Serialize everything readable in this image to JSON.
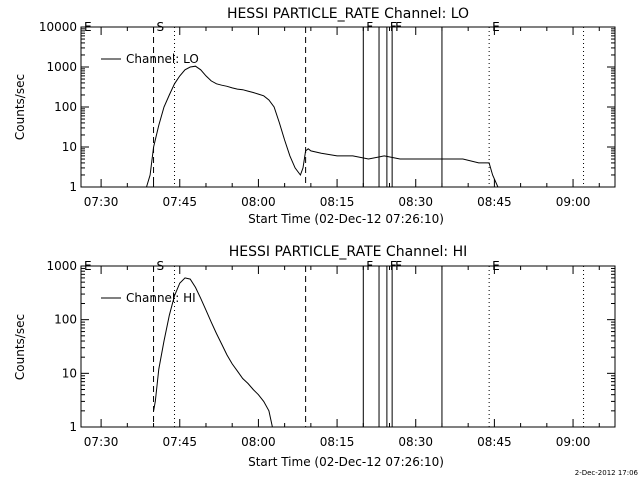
{
  "footer": {
    "timestamp": "2-Dec-2012 17:06"
  },
  "chart_data": [
    {
      "type": "line",
      "title": "HESSI PARTICLE_RATE Channel: LO",
      "xlabel": "Start Time (02-Dec-12 07:26:10)",
      "ylabel": "Counts/sec",
      "y_scale": "log",
      "ylim": [
        1,
        10000
      ],
      "xlim": [
        "07:26:10",
        "09:08"
      ],
      "x_ticks": [
        "07:30",
        "07:45",
        "08:00",
        "08:15",
        "08:30",
        "08:45",
        "09:00"
      ],
      "y_ticks": [
        "1",
        "10",
        "100",
        "1000",
        "10000"
      ],
      "legend": {
        "position": "top-left",
        "entries": [
          "Channel: LO"
        ]
      },
      "event_markers": [
        {
          "label": "E",
          "time": "07:26:10",
          "style": "none"
        },
        {
          "label": "S",
          "time": "07:40",
          "style": "dashed"
        },
        {
          "label": "",
          "time": "07:44",
          "style": "dotted"
        },
        {
          "label": "",
          "time": "08:09",
          "style": "dashed"
        },
        {
          "label": "F",
          "time": "08:20",
          "style": "solid"
        },
        {
          "label": "",
          "time": "08:23",
          "style": "solid"
        },
        {
          "label": "F",
          "time": "08:24.5",
          "style": "solid"
        },
        {
          "label": "F",
          "time": "08:25.5",
          "style": "solid"
        },
        {
          "label": "",
          "time": "08:35",
          "style": "solid"
        },
        {
          "label": "E",
          "time": "08:44",
          "style": "dotted"
        },
        {
          "label": "",
          "time": "09:02",
          "style": "dotted"
        }
      ],
      "series": [
        {
          "name": "Channel: LO",
          "x": [
            7.4361,
            7.45,
            7.4667,
            7.4833,
            7.5,
            7.5167,
            7.5333,
            7.55,
            7.5667,
            7.5833,
            7.6,
            7.6167,
            7.6333,
            7.6444,
            7.6556,
            7.6667,
            7.6833,
            7.7,
            7.7167,
            7.7333,
            7.75,
            7.7667,
            7.7833,
            7.8,
            7.8167,
            7.8333,
            7.85,
            7.8667,
            7.8833,
            7.9,
            7.9167,
            7.9333,
            7.95,
            7.9667,
            7.9833,
            8.0,
            8.0167,
            8.0333,
            8.05,
            8.0667,
            8.0833,
            8.1,
            8.1167,
            8.1333,
            8.1417,
            8.15,
            8.1583,
            8.1667,
            8.2,
            8.25,
            8.3,
            8.35,
            8.4,
            8.45,
            8.5,
            8.55,
            8.6,
            8.65,
            8.7,
            8.7333,
            8.7444,
            8.7611,
            8.7778,
            8.8,
            8.8333,
            8.8667,
            8.9,
            8.9333,
            8.9667,
            9.0,
            9.0333,
            9.0667,
            9.1
          ],
          "values": [
            1,
            1,
            1,
            1,
            1,
            1,
            1,
            1,
            1,
            1,
            1,
            1,
            1,
            1,
            2,
            10,
            35,
            100,
            200,
            380,
            600,
            850,
            1000,
            1050,
            850,
            600,
            450,
            380,
            350,
            330,
            300,
            280,
            270,
            250,
            230,
            210,
            190,
            150,
            100,
            40,
            15,
            6,
            3,
            2,
            3,
            8,
            9,
            8,
            7,
            6,
            6,
            5,
            6,
            5,
            5,
            5,
            5,
            5,
            4,
            4,
            2,
            1,
            1,
            1,
            1,
            1,
            1,
            1,
            1,
            1,
            1,
            1,
            1
          ]
        }
      ]
    },
    {
      "type": "line",
      "title": "HESSI PARTICLE_RATE Channel: HI",
      "xlabel": "Start Time (02-Dec-12 07:26:10)",
      "ylabel": "Counts/sec",
      "y_scale": "log",
      "ylim": [
        1,
        1000
      ],
      "xlim": [
        "07:26:10",
        "09:08"
      ],
      "x_ticks": [
        "07:30",
        "07:45",
        "08:00",
        "08:15",
        "08:30",
        "08:45",
        "09:00"
      ],
      "y_ticks": [
        "1",
        "10",
        "100",
        "1000"
      ],
      "legend": {
        "position": "top-left",
        "entries": [
          "Channel: HI"
        ]
      },
      "event_markers": [
        {
          "label": "E",
          "time": "07:26:10",
          "style": "none"
        },
        {
          "label": "S",
          "time": "07:40",
          "style": "dashed"
        },
        {
          "label": "",
          "time": "07:44",
          "style": "dotted"
        },
        {
          "label": "",
          "time": "08:09",
          "style": "dashed"
        },
        {
          "label": "F",
          "time": "08:20",
          "style": "solid"
        },
        {
          "label": "",
          "time": "08:23",
          "style": "solid"
        },
        {
          "label": "F",
          "time": "08:24.5",
          "style": "solid"
        },
        {
          "label": "F",
          "time": "08:25.5",
          "style": "solid"
        },
        {
          "label": "",
          "time": "08:35",
          "style": "solid"
        },
        {
          "label": "E",
          "time": "08:44",
          "style": "dotted"
        },
        {
          "label": "",
          "time": "09:02",
          "style": "dotted"
        }
      ],
      "series": [
        {
          "name": "Channel: HI",
          "x": [
            7.6667,
            7.6722,
            7.6833,
            7.7,
            7.7167,
            7.7333,
            7.75,
            7.7667,
            7.7833,
            7.8,
            7.8167,
            7.8333,
            7.85,
            7.8667,
            7.8833,
            7.9,
            7.9167,
            7.9333,
            7.95,
            7.9667,
            7.9833,
            8.0,
            8.0167,
            8.0333,
            8.0444
          ],
          "values": [
            2,
            3,
            12,
            40,
            120,
            280,
            480,
            600,
            570,
            400,
            250,
            150,
            90,
            55,
            35,
            22,
            15,
            11,
            8,
            6.5,
            5,
            4,
            3,
            2,
            1
          ]
        }
      ]
    }
  ]
}
